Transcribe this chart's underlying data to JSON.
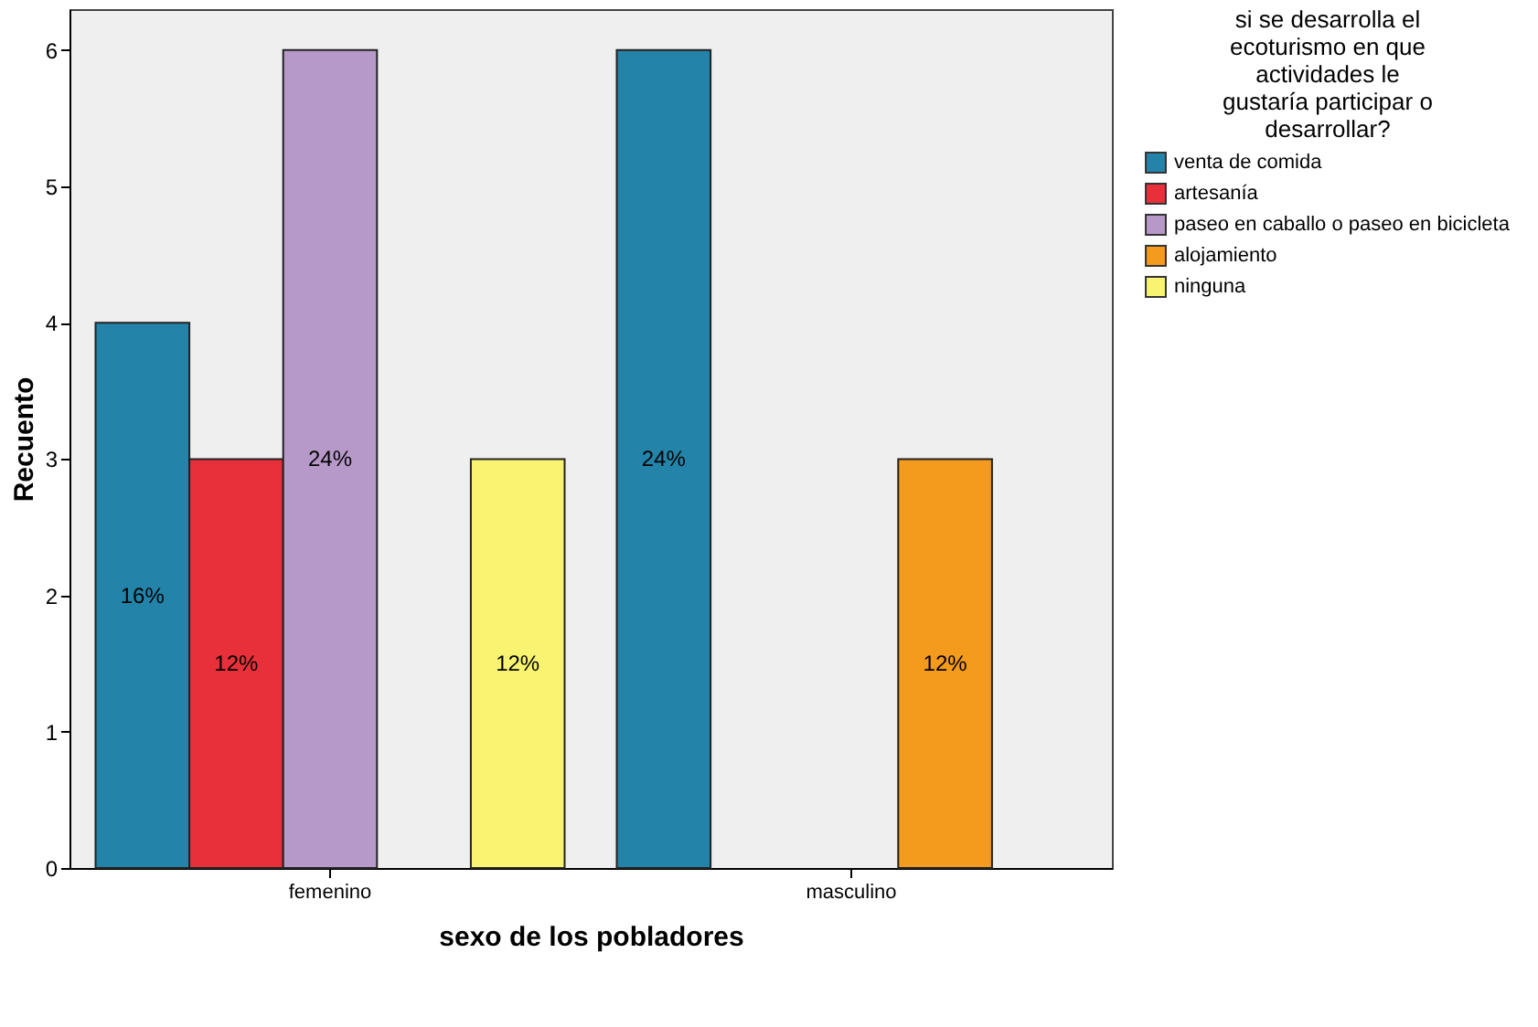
{
  "chart_data": {
    "type": "bar",
    "xlabel": "sexo de los pobladores",
    "ylabel": "Recuento",
    "legend_title": "si se desarrolla el ecoturismo en que actividades le gustaría participar o desarrollar?",
    "categories": [
      "femenino",
      "masculino"
    ],
    "series": [
      {
        "name": "venta de comida",
        "color": "#2483a8",
        "values": [
          4,
          6
        ]
      },
      {
        "name": "artesanía",
        "color": "#e8303a",
        "values": [
          3,
          null
        ]
      },
      {
        "name": "paseo en caballo o paseo en bicicleta",
        "color": "#b799c9",
        "values": [
          6,
          null
        ]
      },
      {
        "name": "alojamiento",
        "color": "#f49a1c",
        "values": [
          null,
          3
        ]
      },
      {
        "name": "ninguna",
        "color": "#f8f472",
        "values": [
          3,
          null
        ]
      }
    ],
    "annotations": [
      "16%",
      "12%",
      "24%",
      "12%",
      "24%",
      "12%"
    ],
    "ylim": [
      0,
      6.3
    ],
    "yticks": [
      0,
      1,
      2,
      3,
      4,
      5,
      6
    ],
    "grid": false,
    "legend": "top right"
  }
}
